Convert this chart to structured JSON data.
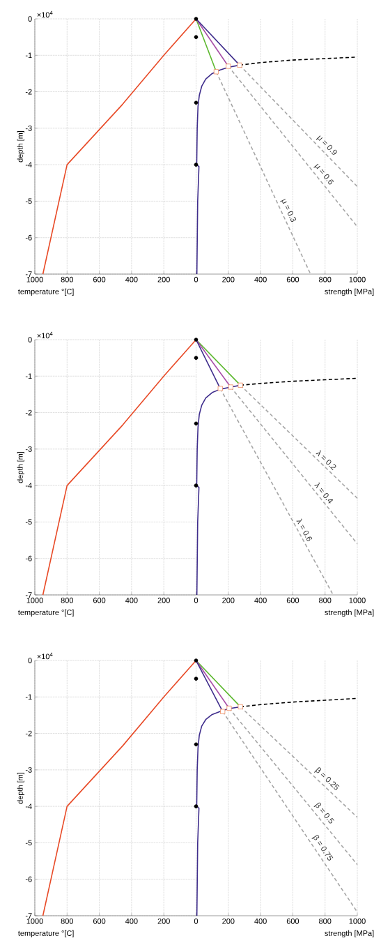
{
  "chart_data": [
    {
      "type": "line",
      "xlabel": "temperature °[C]",
      "ylabel": "depth [m]",
      "annotations": [
        "×10$^{4}$"
      ],
      "grid": true,
      "xlim": [
        1000,
        0
      ],
      "ylim": [
        -7,
        0
      ],
      "xticks": [
        1000,
        800,
        600,
        400,
        200
      ],
      "yticks": [
        -7,
        -6,
        -5,
        -4,
        -3,
        -2,
        -1,
        0
      ],
      "series": [
        {
          "color": "#e84a27",
          "x": [
            0,
            200,
            455,
            800,
            950
          ],
          "values": [
            0,
            -1,
            -2.34,
            -4,
            -7
          ]
        }
      ]
    },
    {
      "type": "line",
      "xlabel": "strength [MPa]",
      "grid": true,
      "tick_labels": "x",
      "xlim": [
        0,
        1000
      ],
      "ylim": [
        -7,
        0
      ],
      "xticks": [
        0,
        200,
        400,
        600,
        800,
        1000
      ],
      "yticks": [
        -7,
        -6,
        -5,
        -4,
        -3,
        -2,
        -1,
        0
      ],
      "series": [
        {
          "name": "μ = 0.9",
          "color": "#a6a6a6",
          "line_style": "dashed",
          "x": [
            270,
            1000
          ],
          "values": [
            -1.27,
            -4.6
          ]
        },
        {
          "name": "μ = 0.6",
          "color": "#a6a6a6",
          "line_style": "dashed",
          "x": [
            200,
            1000
          ],
          "values": [
            -1.3,
            -5.7
          ]
        },
        {
          "name": "μ = 0.3",
          "color": "#a6a6a6",
          "line_style": "dashed",
          "x": [
            125,
            710
          ],
          "values": [
            -1.45,
            -7
          ]
        },
        {
          "color": "#000000",
          "line_style": "dashed",
          "x": [
            270,
            400,
            600,
            800,
            1000
          ],
          "values": [
            -1.27,
            -1.2,
            -1.13,
            -1.09,
            -1.05
          ]
        },
        {
          "color": "#5cb82e",
          "x": [
            0,
            125
          ],
          "values": [
            0,
            -1.45
          ]
        },
        {
          "color": "#a64ca6",
          "x": [
            0,
            200
          ],
          "values": [
            0,
            -1.3
          ]
        },
        {
          "color": "#3f2d8c",
          "x": [
            0,
            270,
            200,
            150,
            100,
            60,
            35,
            20,
            12,
            7,
            4,
            18,
            10,
            5
          ],
          "values": [
            0,
            -1.27,
            -1.33,
            -1.4,
            -1.5,
            -1.65,
            -1.85,
            -2.1,
            -2.4,
            -3,
            -4,
            -4.05,
            -5,
            -7
          ]
        },
        {
          "type": "scatter",
          "marker": "square",
          "color": "#f08a5d",
          "x": [
            125,
            200,
            270
          ],
          "values": [
            -1.45,
            -1.3,
            -1.27
          ]
        },
        {
          "type": "scatter",
          "marker": "circle",
          "color": "#000000",
          "x": [
            0,
            0,
            0,
            0
          ],
          "values": [
            0,
            -0.5,
            -2.3,
            -4
          ]
        }
      ]
    },
    {
      "type": "line",
      "xlabel": "temperature °[C]",
      "ylabel": "depth [m]",
      "annotations": [
        "×10$^{4}$"
      ],
      "grid": true,
      "xlim": [
        1000,
        0
      ],
      "ylim": [
        -7,
        0
      ],
      "xticks": [
        1000,
        800,
        600,
        400,
        200
      ],
      "yticks": [
        -7,
        -6,
        -5,
        -4,
        -3,
        -2,
        -1,
        0
      ],
      "series": [
        {
          "color": "#e84a27",
          "x": [
            0,
            200,
            455,
            800,
            950
          ],
          "values": [
            0,
            -1,
            -2.34,
            -4,
            -7
          ]
        }
      ]
    },
    {
      "type": "line",
      "xlabel": "strength [MPa]",
      "grid": true,
      "tick_labels": "x",
      "xlim": [
        0,
        1000
      ],
      "ylim": [
        -7,
        0
      ],
      "xticks": [
        0,
        200,
        400,
        600,
        800,
        1000
      ],
      "yticks": [
        -7,
        -6,
        -5,
        -4,
        -3,
        -2,
        -1,
        0
      ],
      "series": [
        {
          "name": "λ = 0.2",
          "color": "#a6a6a6",
          "line_style": "dashed",
          "x": [
            275,
            1000
          ],
          "values": [
            -1.25,
            -4.35
          ]
        },
        {
          "name": "λ = 0.4",
          "color": "#a6a6a6",
          "line_style": "dashed",
          "x": [
            215,
            1000
          ],
          "values": [
            -1.3,
            -5.6
          ]
        },
        {
          "name": "λ = 0.6",
          "color": "#a6a6a6",
          "line_style": "dashed",
          "x": [
            150,
            850
          ],
          "values": [
            -1.34,
            -7
          ]
        },
        {
          "color": "#000000",
          "line_style": "dashed",
          "x": [
            275,
            400,
            600,
            800,
            1000
          ],
          "values": [
            -1.25,
            -1.2,
            -1.14,
            -1.1,
            -1.06
          ]
        },
        {
          "color": "#5cb82e",
          "x": [
            0,
            275
          ],
          "values": [
            0,
            -1.25
          ]
        },
        {
          "color": "#a64ca6",
          "x": [
            0,
            215
          ],
          "values": [
            0,
            -1.3
          ]
        },
        {
          "color": "#3f2d8c",
          "x": [
            0,
            150
          ],
          "values": [
            0,
            -1.34
          ]
        },
        {
          "color": "#3f2d8c",
          "x": [
            275,
            215,
            150,
            100,
            60,
            35,
            20,
            12,
            7,
            4,
            18,
            10,
            5
          ],
          "values": [
            -1.25,
            -1.3,
            -1.36,
            -1.45,
            -1.6,
            -1.8,
            -2.05,
            -2.4,
            -3,
            -4,
            -4.05,
            -5,
            -7
          ]
        },
        {
          "type": "scatter",
          "marker": "square",
          "color": "#f08a5d",
          "x": [
            150,
            215,
            275
          ],
          "values": [
            -1.34,
            -1.3,
            -1.25
          ]
        },
        {
          "type": "scatter",
          "marker": "circle",
          "color": "#000000",
          "x": [
            0,
            0,
            0,
            0
          ],
          "values": [
            0,
            -0.5,
            -2.3,
            -4
          ]
        }
      ]
    },
    {
      "type": "line",
      "xlabel": "temperature °[C]",
      "ylabel": "depth [m]",
      "annotations": [
        "×10$^{4}$"
      ],
      "grid": true,
      "xlim": [
        1000,
        0
      ],
      "ylim": [
        -7,
        0
      ],
      "xticks": [
        1000,
        800,
        600,
        400,
        200
      ],
      "yticks": [
        -7,
        -6,
        -5,
        -4,
        -3,
        -2,
        -1,
        0
      ],
      "series": [
        {
          "color": "#e84a27",
          "x": [
            0,
            200,
            455,
            800,
            950
          ],
          "values": [
            0,
            -1,
            -2.34,
            -4,
            -7
          ]
        }
      ]
    },
    {
      "type": "line",
      "xlabel": "strength [MPa]",
      "grid": true,
      "tick_labels": "x",
      "xlim": [
        0,
        1000
      ],
      "ylim": [
        -7,
        0
      ],
      "xticks": [
        0,
        200,
        400,
        600,
        800,
        1000
      ],
      "yticks": [
        -7,
        -6,
        -5,
        -4,
        -3,
        -2,
        -1,
        0
      ],
      "series": [
        {
          "name": "β = 0.25",
          "color": "#a6a6a6",
          "line_style": "dashed",
          "x": [
            275,
            1000
          ],
          "values": [
            -1.27,
            -4.3
          ]
        },
        {
          "name": "β = 0.5",
          "color": "#a6a6a6",
          "line_style": "dashed",
          "x": [
            205,
            1000
          ],
          "values": [
            -1.31,
            -5.6
          ]
        },
        {
          "name": "β = 0.75",
          "color": "#a6a6a6",
          "line_style": "dashed",
          "x": [
            165,
            1000
          ],
          "values": [
            -1.4,
            -6.9
          ]
        },
        {
          "color": "#000000",
          "line_style": "dashed",
          "x": [
            275,
            400,
            600,
            800,
            1000
          ],
          "values": [
            -1.27,
            -1.21,
            -1.14,
            -1.09,
            -1.04
          ]
        },
        {
          "color": "#5cb82e",
          "x": [
            0,
            275
          ],
          "values": [
            0,
            -1.27
          ]
        },
        {
          "color": "#a64ca6",
          "x": [
            0,
            205
          ],
          "values": [
            0,
            -1.31
          ]
        },
        {
          "color": "#3f2d8c",
          "x": [
            0,
            165
          ],
          "values": [
            0,
            -1.4
          ]
        },
        {
          "color": "#3f2d8c",
          "x": [
            275,
            205,
            165,
            100,
            60,
            35,
            20,
            12,
            7,
            4,
            18,
            10,
            5
          ],
          "values": [
            -1.27,
            -1.32,
            -1.37,
            -1.48,
            -1.62,
            -1.8,
            -2.05,
            -2.4,
            -3,
            -4,
            -4.05,
            -5,
            -7
          ]
        },
        {
          "type": "scatter",
          "marker": "square",
          "color": "#f08a5d",
          "x": [
            165,
            205,
            275
          ],
          "values": [
            -1.4,
            -1.31,
            -1.27
          ]
        },
        {
          "type": "scatter",
          "marker": "circle",
          "color": "#000000",
          "x": [
            0,
            0,
            0,
            0
          ],
          "values": [
            0,
            -0.5,
            -2.3,
            -4
          ]
        }
      ]
    }
  ]
}
